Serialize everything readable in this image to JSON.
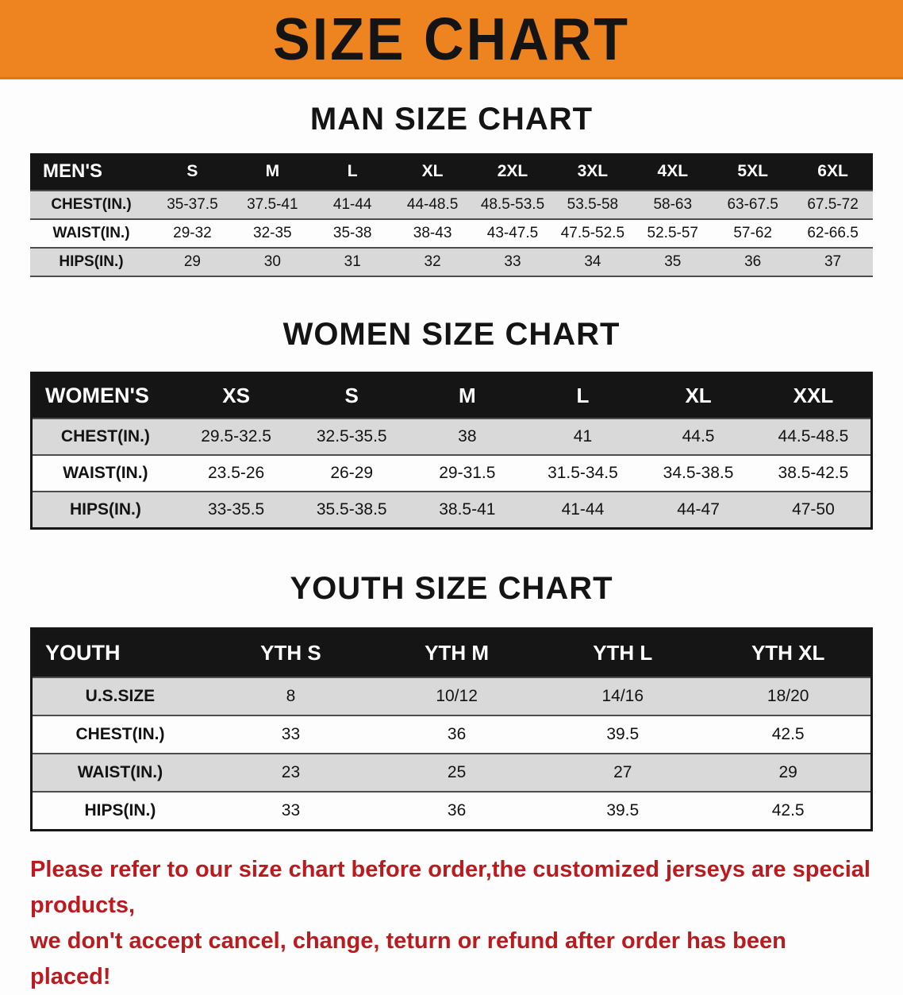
{
  "banner": {
    "title": "SIZE CHART",
    "background_color": "#ee8420",
    "text_color": "#141414"
  },
  "sections": [
    {
      "id": "men",
      "heading": "MAN SIZE CHART",
      "table": {
        "header": [
          "MEN'S",
          "S",
          "M",
          "L",
          "XL",
          "2XL",
          "3XL",
          "4XL",
          "5XL",
          "6XL"
        ],
        "rows": [
          {
            "label": "CHEST(IN.)",
            "values": [
              "35-37.5",
              "37.5-41",
              "41-44",
              "44-48.5",
              "48.5-53.5",
              "53.5-58",
              "58-63",
              "63-67.5",
              "67.5-72"
            ]
          },
          {
            "label": "WAIST(IN.)",
            "values": [
              "29-32",
              "32-35",
              "35-38",
              "38-43",
              "43-47.5",
              "47.5-52.5",
              "52.5-57",
              "57-62",
              "62-66.5"
            ]
          },
          {
            "label": "HIPS(IN.)",
            "values": [
              "29",
              "30",
              "31",
              "32",
              "33",
              "34",
              "35",
              "36",
              "37"
            ]
          }
        ]
      }
    },
    {
      "id": "women",
      "heading": "WOMEN SIZE CHART",
      "table": {
        "header": [
          "WOMEN'S",
          "XS",
          "S",
          "M",
          "L",
          "XL",
          "XXL"
        ],
        "rows": [
          {
            "label": "CHEST(IN.)",
            "values": [
              "29.5-32.5",
              "32.5-35.5",
              "38",
              "41",
              "44.5",
              "44.5-48.5"
            ]
          },
          {
            "label": "WAIST(IN.)",
            "values": [
              "23.5-26",
              "26-29",
              "29-31.5",
              "31.5-34.5",
              "34.5-38.5",
              "38.5-42.5"
            ]
          },
          {
            "label": "HIPS(IN.)",
            "values": [
              "33-35.5",
              "35.5-38.5",
              "38.5-41",
              "41-44",
              "44-47",
              "47-50"
            ]
          }
        ]
      }
    },
    {
      "id": "youth",
      "heading": "YOUTH SIZE CHART",
      "table": {
        "header": [
          "YOUTH",
          "YTH S",
          "YTH M",
          "YTH L",
          "YTH XL"
        ],
        "rows": [
          {
            "label": "U.S.SIZE",
            "values": [
              "8",
              "10/12",
              "14/16",
              "18/20"
            ]
          },
          {
            "label": "CHEST(IN.)",
            "values": [
              "33",
              "36",
              "39.5",
              "42.5"
            ]
          },
          {
            "label": "WAIST(IN.)",
            "values": [
              "23",
              "25",
              "27",
              "29"
            ]
          },
          {
            "label": "HIPS(IN.)",
            "values": [
              "33",
              "36",
              "39.5",
              "42.5"
            ]
          }
        ]
      }
    }
  ],
  "disclaimer": {
    "text_color": "#bb1a1f",
    "line1": "Please refer to our size chart before order,the customized jerseys are special products,",
    "line2": "we don't accept cancel, change, teturn or refund after order has been placed!"
  }
}
